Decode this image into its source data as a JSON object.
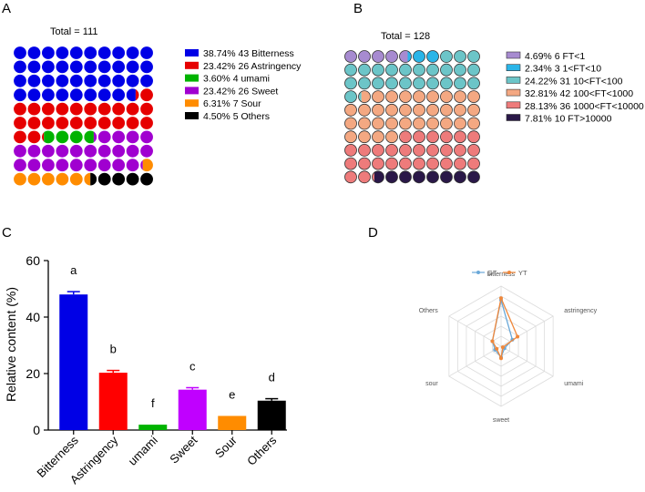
{
  "panels": {
    "A": {
      "label": "A"
    },
    "B": {
      "label": "B"
    },
    "C": {
      "label": "C"
    },
    "D": {
      "label": "D"
    }
  },
  "chart_data": [
    {
      "panel": "A",
      "type": "waffle",
      "title": "Total = 111",
      "rows": 10,
      "cols": 10,
      "categories": [
        {
          "name": "Bitterness",
          "count": 43,
          "percent": 38.74,
          "label": "38.74%  43 Bitterness",
          "color": "#0000e6"
        },
        {
          "name": "Astringency",
          "count": 26,
          "percent": 23.42,
          "label": "23.42%  26 Astringency",
          "color": "#e60000"
        },
        {
          "name": "umami",
          "count": 4,
          "percent": 3.6,
          "label": "3.60%  4 umami",
          "color": "#00b300"
        },
        {
          "name": "Sweet",
          "count": 26,
          "percent": 23.42,
          "label": "23.42%  26 Sweet",
          "color": "#a000d0"
        },
        {
          "name": "Sour",
          "count": 7,
          "percent": 6.31,
          "label": "6.31%  7 Sour",
          "color": "#ff8c00"
        },
        {
          "name": "Others",
          "count": 5,
          "percent": 4.5,
          "label": "4.50%  5 Others",
          "color": "#000000"
        }
      ]
    },
    {
      "panel": "B",
      "type": "waffle",
      "title": "Total = 128",
      "rows": 10,
      "cols": 10,
      "categories": [
        {
          "name": "FT<1",
          "count": 6,
          "percent": 4.69,
          "label": "4.69%  6 FT<1",
          "color": "#a78bd0"
        },
        {
          "name": "1<FT<10",
          "count": 3,
          "percent": 2.34,
          "label": "2.34%  3 1<FT<10",
          "color": "#2ab5e8"
        },
        {
          "name": "10<FT<100",
          "count": 31,
          "percent": 24.22,
          "label": "24.22%  31 10<FT<100",
          "color": "#6cc5c8"
        },
        {
          "name": "100<FT<1000",
          "count": 42,
          "percent": 32.81,
          "label": "32.81%  42 100<FT<1000",
          "color": "#f4a882"
        },
        {
          "name": "1000<FT<10000",
          "count": 36,
          "percent": 28.13,
          "label": "28.13%  36 1000<FT<10000",
          "color": "#ee7b7b"
        },
        {
          "name": "FT>10000",
          "count": 10,
          "percent": 7.81,
          "label": "7.81%  10 FT>10000",
          "color": "#2a1848"
        }
      ]
    },
    {
      "panel": "C",
      "type": "bar",
      "categories": [
        "Bitterness",
        "Astringency",
        "umami",
        "Sweet",
        "Sour",
        "Others"
      ],
      "values": [
        48,
        20.3,
        1.9,
        14.3,
        5.0,
        10.4
      ],
      "errors": [
        1.0,
        0.8,
        0.0,
        0.7,
        0.0,
        0.7
      ],
      "letters": [
        "a",
        "b",
        "f",
        "c",
        "e",
        "d"
      ],
      "colors": [
        "#0000e6",
        "#ff0000",
        "#00b300",
        "#c000ff",
        "#ff8c00",
        "#000000"
      ],
      "ylabel": "Relative content (%)",
      "xlabel": "",
      "ylim": [
        0,
        60
      ],
      "yticks": [
        0,
        20,
        40,
        60
      ]
    },
    {
      "panel": "D",
      "type": "radar",
      "axes": [
        "bitterness",
        "astringency",
        "umami",
        "sweet",
        "sour",
        "Others"
      ],
      "rmax": 60,
      "levels": 6,
      "legend_position": "top",
      "series": [
        {
          "name": "GT",
          "color": "#6aa8d8",
          "values": [
            46,
            13,
            4,
            11,
            7,
            10
          ]
        },
        {
          "name": "YT",
          "color": "#f0873a",
          "values": [
            48,
            19,
            2,
            12,
            5,
            10
          ]
        }
      ]
    }
  ]
}
